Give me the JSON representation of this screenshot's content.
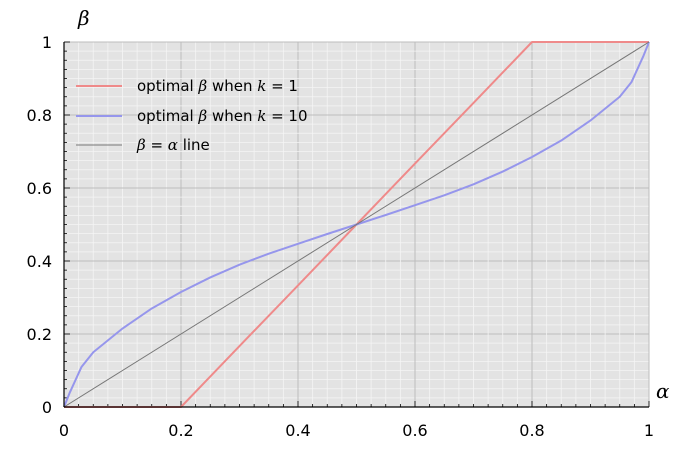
{
  "chart_data": {
    "type": "line",
    "xlabel": "α",
    "ylabel": "β",
    "xlim": [
      0,
      1
    ],
    "ylim": [
      0,
      1
    ],
    "x_ticks": [
      "0",
      "0.2",
      "0.4",
      "0.6",
      "0.8",
      "1"
    ],
    "y_ticks": [
      "0",
      "0.2",
      "0.4",
      "0.6",
      "0.8",
      "1"
    ],
    "grid": true,
    "legend_position": "top-left",
    "series": [
      {
        "name": "optimal β when k = 1",
        "color": "#ef8a8a",
        "x": [
          0,
          0.2,
          0.3,
          0.4,
          0.5,
          0.6,
          0.7,
          0.8,
          1.0
        ],
        "y": [
          0,
          0,
          0.167,
          0.333,
          0.5,
          0.667,
          0.833,
          1.0,
          1.0
        ]
      },
      {
        "name": "optimal β when k = 10",
        "color": "#9696ec",
        "x": [
          0,
          0.01,
          0.03,
          0.05,
          0.1,
          0.15,
          0.2,
          0.25,
          0.3,
          0.35,
          0.4,
          0.45,
          0.5,
          0.55,
          0.6,
          0.65,
          0.7,
          0.75,
          0.8,
          0.85,
          0.9,
          0.95,
          0.97,
          0.99,
          1.0
        ],
        "y": [
          0,
          0.04,
          0.11,
          0.15,
          0.215,
          0.27,
          0.315,
          0.355,
          0.39,
          0.42,
          0.447,
          0.474,
          0.5,
          0.526,
          0.553,
          0.58,
          0.61,
          0.645,
          0.685,
          0.73,
          0.785,
          0.85,
          0.89,
          0.96,
          1.0
        ]
      },
      {
        "name": "β = α line",
        "color": "#777777",
        "x": [
          0,
          1
        ],
        "y": [
          0,
          1
        ]
      }
    ]
  },
  "legend": {
    "items": [
      {
        "prefix": "optimal ",
        "math1": "β",
        "mid": " when ",
        "math2": "k",
        "suffix": " = 1"
      },
      {
        "prefix": "optimal ",
        "math1": "β",
        "mid": " when ",
        "math2": "k",
        "suffix": " = 10"
      },
      {
        "prefix": "",
        "math1": "β",
        "mid": " = ",
        "math2": "α",
        "suffix": " line"
      }
    ]
  }
}
